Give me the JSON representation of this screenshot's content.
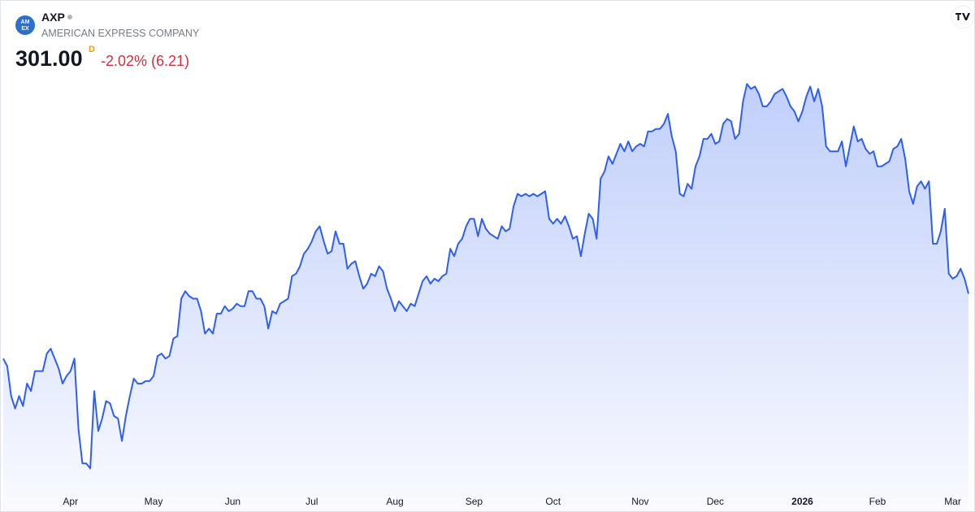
{
  "header": {
    "logo": [
      "AM",
      "EX"
    ],
    "symbol": "AXP",
    "company": "AMERICAN EXPRESS COMPANY",
    "price": "301.00",
    "interval": "D",
    "change": "-2.02% (6.21)"
  },
  "chart_data": {
    "type": "area",
    "color": "#2f5ff0",
    "values": [
      275,
      272,
      260,
      255,
      260,
      256,
      265,
      262,
      270,
      270,
      270,
      277,
      279,
      275,
      271,
      265,
      268,
      270,
      275,
      247,
      233,
      233,
      231,
      262,
      246,
      251,
      258,
      257,
      252,
      251,
      242,
      252,
      260,
      267,
      265,
      265,
      266,
      266,
      268,
      276,
      277,
      275,
      276,
      283,
      284,
      299,
      302,
      300,
      299,
      299,
      294,
      285,
      287,
      285,
      293,
      293,
      296,
      294,
      295,
      297,
      296,
      296,
      302,
      302,
      299,
      299,
      296,
      287,
      294,
      293,
      297,
      298,
      299,
      308,
      309,
      312,
      317,
      319,
      322,
      326,
      328,
      322,
      317,
      318,
      326,
      321,
      321,
      311,
      313,
      314,
      308,
      303,
      305,
      309,
      308,
      312,
      310,
      303,
      299,
      294,
      298,
      296,
      294,
      297,
      296,
      301,
      306,
      308,
      305,
      307,
      306,
      308,
      309,
      319,
      316,
      321,
      323,
      328,
      331,
      331,
      324,
      331,
      327,
      325,
      324,
      323,
      328,
      326,
      327,
      336,
      341,
      340,
      341,
      340,
      341,
      340,
      341,
      342,
      331,
      329,
      331,
      329,
      332,
      328,
      323,
      324,
      316,
      325,
      333,
      331,
      323,
      347,
      350,
      356,
      353,
      357,
      361,
      358,
      362,
      358,
      360,
      361,
      360,
      366,
      366,
      367,
      367,
      369,
      373,
      364,
      358,
      341,
      340,
      345,
      343,
      352,
      356,
      363,
      363,
      365,
      361,
      362,
      369,
      371,
      370,
      363,
      365,
      378,
      385,
      383,
      384,
      381,
      376,
      376,
      378,
      381,
      382,
      383,
      380,
      376,
      374,
      370,
      374,
      380,
      384,
      378,
      383,
      376,
      360,
      358,
      358,
      358,
      362,
      352,
      360,
      368,
      362,
      363,
      359,
      357,
      358,
      352,
      352,
      353,
      354,
      359,
      360,
      363,
      355,
      342,
      337,
      344,
      346,
      343,
      346,
      321,
      321,
      326,
      335,
      309,
      307,
      308,
      311,
      307,
      301
    ],
    "xlim": [
      0,
      244
    ],
    "ylim": [
      223,
      389
    ],
    "xticks": [
      {
        "value": 17,
        "label": "Apr"
      },
      {
        "value": 38,
        "label": "May"
      },
      {
        "value": 58,
        "label": "Jun"
      },
      {
        "value": 78,
        "label": "Jul"
      },
      {
        "value": 99,
        "label": "Aug"
      },
      {
        "value": 119,
        "label": "Sep"
      },
      {
        "value": 139,
        "label": "Oct"
      },
      {
        "value": 161,
        "label": "Nov"
      },
      {
        "value": 180,
        "label": "Dec"
      },
      {
        "value": 202,
        "label": "2026"
      },
      {
        "value": 221,
        "label": "Feb"
      },
      {
        "value": 240,
        "label": "Mar"
      }
    ]
  }
}
